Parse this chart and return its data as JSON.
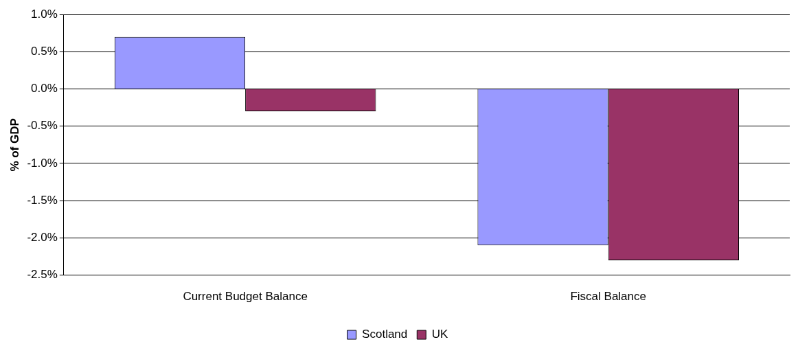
{
  "chart_data": {
    "type": "bar",
    "ylabel": "% of GDP",
    "categories": [
      "Current Budget Balance",
      "Fiscal Balance"
    ],
    "series": [
      {
        "name": "Scotland",
        "color": "#9999ff",
        "values": [
          0.7,
          -2.1
        ]
      },
      {
        "name": "UK",
        "color": "#993366",
        "values": [
          -0.3,
          -2.3
        ]
      }
    ],
    "ylim": [
      -2.5,
      1.0
    ],
    "yticks": [
      {
        "value": -2.5,
        "label": "-2.5%"
      },
      {
        "value": -2.0,
        "label": "-2.0%"
      },
      {
        "value": -1.5,
        "label": "-1.5%"
      },
      {
        "value": -1.0,
        "label": "-1.0%"
      },
      {
        "value": -0.5,
        "label": "-0.5%"
      },
      {
        "value": 0,
        "label": "0.0%"
      },
      {
        "value": 0.5,
        "label": "0.5%"
      },
      {
        "value": 1.0,
        "label": "1.0%"
      }
    ],
    "grid": "y",
    "legend": "bottom"
  }
}
